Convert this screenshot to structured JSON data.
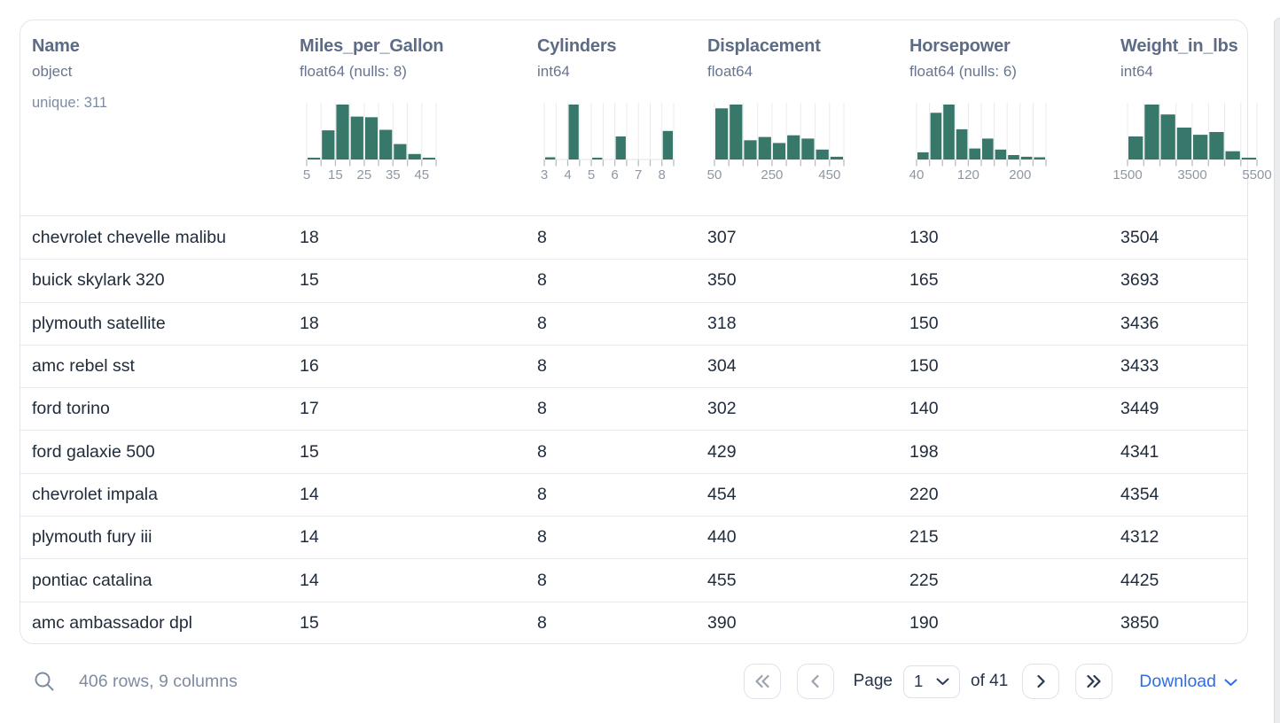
{
  "colors": {
    "bar_green": "#38786a",
    "grid_line": "#e9ebea",
    "tick": "#b7bdc2",
    "axis_line": "#e2e5e5",
    "accent_blue": "#2e6ee2",
    "header_text": "#5d6b84",
    "cell_text": "#202c3b"
  },
  "table": {
    "columns": [
      {
        "name": "Name",
        "type": "object",
        "extra": "unique: 311"
      },
      {
        "name": "Miles_per_Gallon",
        "type": "float64 (nulls: 8)",
        "histogram": {
          "type": "bar",
          "bin_start": 5,
          "bin_step": 5,
          "bars": [
            0.03,
            0.53,
            1.0,
            0.78,
            0.77,
            0.54,
            0.28,
            0.1,
            0.03
          ],
          "tick_labels": [
            {
              "at": 0,
              "text": "5"
            },
            {
              "at": 2,
              "text": "15"
            },
            {
              "at": 4,
              "text": "25"
            },
            {
              "at": 6,
              "text": "35"
            },
            {
              "at": 8,
              "text": "45"
            }
          ]
        }
      },
      {
        "name": "Cylinders",
        "type": "int64",
        "histogram": {
          "type": "bar",
          "bin_start": 3,
          "bin_step": 0.5,
          "bars": [
            0.04,
            0,
            1.0,
            0,
            0.03,
            0,
            0.42,
            0,
            0,
            0,
            0.52
          ],
          "tick_labels": [
            {
              "at": 0,
              "text": "3"
            },
            {
              "at": 2,
              "text": "4"
            },
            {
              "at": 4,
              "text": "5"
            },
            {
              "at": 6,
              "text": "6"
            },
            {
              "at": 8,
              "text": "7"
            },
            {
              "at": 10,
              "text": "8"
            }
          ]
        }
      },
      {
        "name": "Displacement",
        "type": "float64",
        "histogram": {
          "type": "bar",
          "bin_start": 50,
          "bin_step": 50,
          "bars": [
            0.93,
            1.0,
            0.35,
            0.41,
            0.3,
            0.44,
            0.38,
            0.18,
            0.05
          ],
          "tick_labels": [
            {
              "at": 0,
              "text": "50"
            },
            {
              "at": 4,
              "text": "250"
            },
            {
              "at": 8,
              "text": "450"
            }
          ]
        }
      },
      {
        "name": "Horsepower",
        "type": "float64 (nulls: 6)",
        "histogram": {
          "type": "bar",
          "bin_start": 40,
          "bin_step": 20,
          "bars": [
            0.13,
            0.85,
            1.0,
            0.55,
            0.2,
            0.38,
            0.18,
            0.08,
            0.05,
            0.04
          ],
          "tick_labels": [
            {
              "at": 0,
              "text": "40"
            },
            {
              "at": 4,
              "text": "120"
            },
            {
              "at": 8,
              "text": "200"
            }
          ]
        }
      },
      {
        "name": "Weight_in_lbs",
        "type": "int64",
        "histogram": {
          "type": "bar",
          "bin_start": 1500,
          "bin_step": 500,
          "bars": [
            0.42,
            1.0,
            0.82,
            0.58,
            0.45,
            0.5,
            0.15,
            0.03
          ],
          "tick_labels": [
            {
              "at": 0,
              "text": "1500"
            },
            {
              "at": 4,
              "text": "3500"
            },
            {
              "at": 8,
              "text": "5500"
            }
          ]
        }
      }
    ],
    "rows": [
      [
        "chevrolet chevelle malibu",
        "18",
        "8",
        "307",
        "130",
        "3504"
      ],
      [
        "buick skylark 320",
        "15",
        "8",
        "350",
        "165",
        "3693"
      ],
      [
        "plymouth satellite",
        "18",
        "8",
        "318",
        "150",
        "3436"
      ],
      [
        "amc rebel sst",
        "16",
        "8",
        "304",
        "150",
        "3433"
      ],
      [
        "ford torino",
        "17",
        "8",
        "302",
        "140",
        "3449"
      ],
      [
        "ford galaxie 500",
        "15",
        "8",
        "429",
        "198",
        "4341"
      ],
      [
        "chevrolet impala",
        "14",
        "8",
        "454",
        "220",
        "4354"
      ],
      [
        "plymouth fury iii",
        "14",
        "8",
        "440",
        "215",
        "4312"
      ],
      [
        "pontiac catalina",
        "14",
        "8",
        "455",
        "225",
        "4425"
      ],
      [
        "amc ambassador dpl",
        "15",
        "8",
        "390",
        "190",
        "3850"
      ]
    ]
  },
  "footer": {
    "status": "406 rows, 9 columns",
    "page_label": "Page",
    "page_value": "1",
    "of_label": "of 41",
    "download_label": "Download",
    "pagination": {
      "first_disabled": true,
      "prev_disabled": true,
      "next_disabled": false,
      "last_disabled": false
    }
  }
}
